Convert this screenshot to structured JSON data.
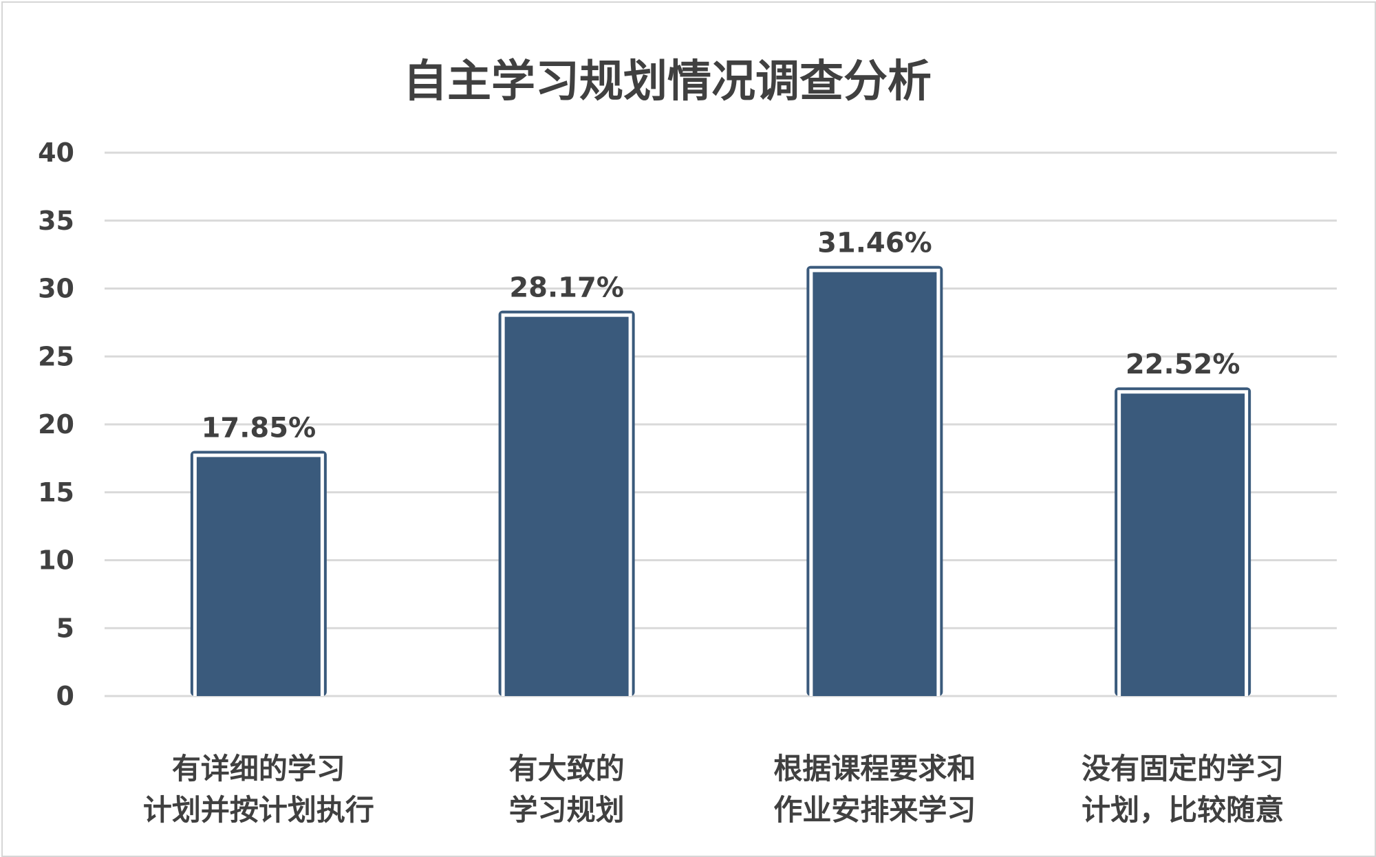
{
  "chart_data": {
    "type": "bar",
    "title": "自主学习规划情况调查分析",
    "categories": [
      [
        "有详细的学习",
        "计划并按计划执行"
      ],
      [
        "有大致的",
        "学习规划"
      ],
      [
        "根据课程要求和",
        "作业安排来学习"
      ],
      [
        "没有固定的学习",
        "计划，比较随意"
      ]
    ],
    "values": [
      17.85,
      28.17,
      31.46,
      22.52
    ],
    "data_labels": [
      "17.85%",
      "28.17%",
      "31.46%",
      "22.52%"
    ],
    "y_ticks": [
      "0",
      "5",
      "10",
      "15",
      "20",
      "25",
      "30",
      "35",
      "40"
    ],
    "ylim": [
      0,
      40
    ],
    "grid": true,
    "legend": "none",
    "colors": {
      "bar_fill": "#3a5a7c",
      "bar_inner_stroke": "#ffffff",
      "bar_outer_stroke": "#3a5a7c",
      "grid": "#d9d9d9",
      "text": "#404040"
    }
  }
}
